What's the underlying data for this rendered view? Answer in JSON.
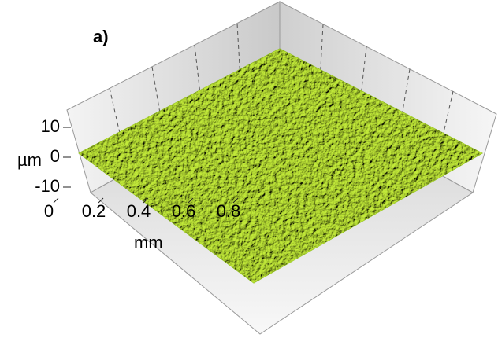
{
  "chart_data": {
    "type": "surface3d",
    "panel_label": "a)",
    "zlabel": "µm",
    "zlim": [
      -10,
      10
    ],
    "zticks": [
      10,
      0,
      -10
    ],
    "xlabel": "mm",
    "xlim": [
      0,
      1
    ],
    "xticks": [
      0,
      0.2,
      0.4,
      0.6,
      0.8
    ],
    "surface_color": "#a6d62a"
  }
}
